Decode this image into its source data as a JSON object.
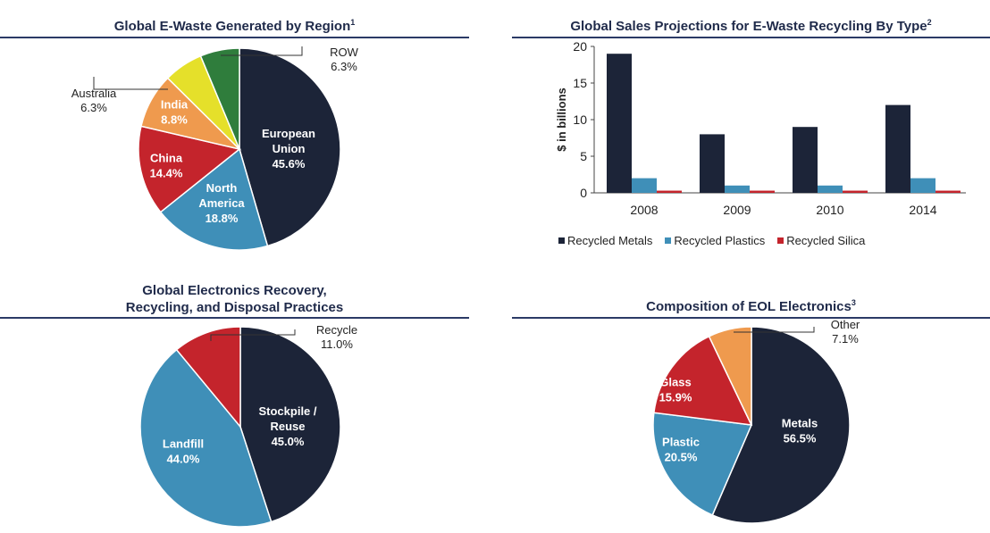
{
  "colors": {
    "navy": "#1c2438",
    "blue": "#3f8fb8",
    "red": "#c4242c",
    "orange": "#ef9a4e",
    "yellow": "#e5e02a",
    "green": "#2f7d3c",
    "title": "#1f2a4a",
    "rule": "#2b3a66"
  },
  "panels": {
    "region": {
      "title": "Global E-Waste Generated by Region",
      "sup": "1"
    },
    "sales": {
      "title": "Global Sales Projections for E-Waste Recycling By Type",
      "sup": "2"
    },
    "recovery": {
      "title_line1": "Global Electronics Recovery,",
      "title_line2": "Recycling, and Disposal Practices"
    },
    "eol": {
      "title": "Composition of EOL Electronics",
      "sup": "3"
    }
  },
  "chart_data": [
    {
      "type": "pie",
      "title": "Global E-Waste Generated by Region",
      "slices": [
        {
          "label": [
            "European",
            "Union"
          ],
          "value": 45.6,
          "text": "45.6%",
          "color": "#1c2438",
          "label_inside": true
        },
        {
          "label": [
            "North",
            "America"
          ],
          "value": 18.8,
          "text": "18.8%",
          "color": "#3f8fb8",
          "label_inside": true
        },
        {
          "label": [
            "China"
          ],
          "value": 14.4,
          "text": "14.4%",
          "color": "#c4242c",
          "label_inside": true
        },
        {
          "label": [
            "India"
          ],
          "value": 8.8,
          "text": "8.8%",
          "color": "#ef9a4e",
          "label_inside": true
        },
        {
          "label": [
            "Australia"
          ],
          "value": 6.3,
          "text": "6.3%",
          "color": "#e5e02a",
          "label_inside": false
        },
        {
          "label": [
            "ROW"
          ],
          "value": 6.3,
          "text": "6.3%",
          "color": "#2f7d3c",
          "label_inside": false
        }
      ]
    },
    {
      "type": "bar",
      "title": "Global Sales Projections for E-Waste Recycling By Type",
      "ylabel": "$ in billions",
      "ylim": [
        0,
        20
      ],
      "yticks": [
        0,
        5,
        10,
        15,
        20
      ],
      "categories": [
        "2008",
        "2009",
        "2010",
        "2014"
      ],
      "series": [
        {
          "name": "Recycled Metals",
          "values": [
            19,
            8,
            9,
            12
          ],
          "color": "#1c2438"
        },
        {
          "name": "Recycled Plastics",
          "values": [
            2,
            1,
            1,
            2
          ],
          "color": "#3f8fb8"
        },
        {
          "name": "Recycled Silica",
          "values": [
            0.3,
            0.3,
            0.3,
            0.3
          ],
          "color": "#c4242c"
        }
      ],
      "legend": "bottom"
    },
    {
      "type": "pie",
      "title": "Global Electronics Recovery, Recycling, and Disposal Practices",
      "slices": [
        {
          "label": [
            "Stockpile /",
            "Reuse"
          ],
          "value": 45.0,
          "text": "45.0%",
          "color": "#1c2438",
          "label_inside": true
        },
        {
          "label": [
            "Landfill"
          ],
          "value": 44.0,
          "text": "44.0%",
          "color": "#3f8fb8",
          "label_inside": true
        },
        {
          "label": [
            "Recycle"
          ],
          "value": 11.0,
          "text": "11.0%",
          "color": "#c4242c",
          "label_inside": false
        }
      ]
    },
    {
      "type": "pie",
      "title": "Composition of EOL Electronics",
      "slices": [
        {
          "label": [
            "Metals"
          ],
          "value": 56.5,
          "text": "56.5%",
          "color": "#1c2438",
          "label_inside": true
        },
        {
          "label": [
            "Plastic"
          ],
          "value": 20.5,
          "text": "20.5%",
          "color": "#3f8fb8",
          "label_inside": true
        },
        {
          "label": [
            "Glass"
          ],
          "value": 15.9,
          "text": "15.9%",
          "color": "#c4242c",
          "label_inside": true
        },
        {
          "label": [
            "Other"
          ],
          "value": 7.1,
          "text": "7.1%",
          "color": "#ef9a4e",
          "label_inside": false
        }
      ]
    }
  ]
}
